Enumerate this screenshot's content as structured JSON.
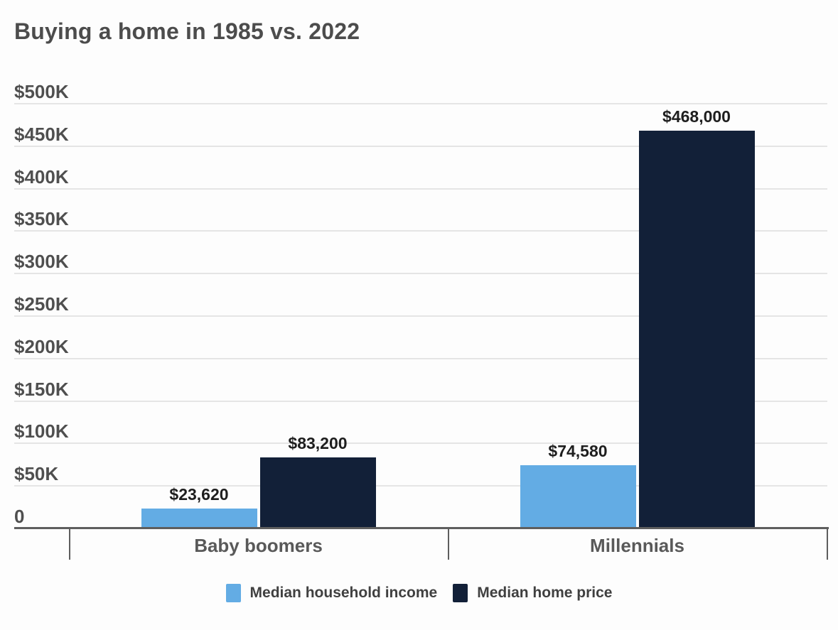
{
  "chart_data": {
    "type": "bar",
    "title": "Buying a home in 1985 vs. 2022",
    "categories": [
      "Baby boomers",
      "Millennials"
    ],
    "series": [
      {
        "name": "Median household income",
        "color": "#63ace4",
        "values": [
          23620,
          74580
        ],
        "labels": [
          "$23,620",
          "$74,580"
        ]
      },
      {
        "name": "Median home price",
        "color": "#122038",
        "values": [
          83200,
          468000
        ],
        "labels": [
          "$83,200",
          "$468,000"
        ]
      }
    ],
    "yticks": [
      {
        "label": "$500K",
        "value": 500000
      },
      {
        "label": "$450K",
        "value": 450000
      },
      {
        "label": "$400K",
        "value": 400000
      },
      {
        "label": "$350K",
        "value": 350000
      },
      {
        "label": "$300K",
        "value": 300000
      },
      {
        "label": "$250K",
        "value": 250000
      },
      {
        "label": "$200K",
        "value": 200000
      },
      {
        "label": "$150K",
        "value": 150000
      },
      {
        "label": "$100K",
        "value": 100000
      },
      {
        "label": "$50K",
        "value": 50000
      },
      {
        "label": "0",
        "value": 0
      }
    ],
    "ylim": [
      0,
      500000
    ],
    "xlabel": "",
    "ylabel": "",
    "grid": true,
    "legend_position": "bottom",
    "colors": {
      "income_bar": "#63ace4",
      "price_bar": "#122038",
      "title": "#4c4c4c",
      "axis_text": "#4f4f4f",
      "category_text": "#595959",
      "value_text": "#1e1e1e",
      "legend_text": "#404040",
      "gridline": "#e5e5e5",
      "axis_line": "#5e5e5e",
      "background": "#fdfdfd"
    }
  }
}
